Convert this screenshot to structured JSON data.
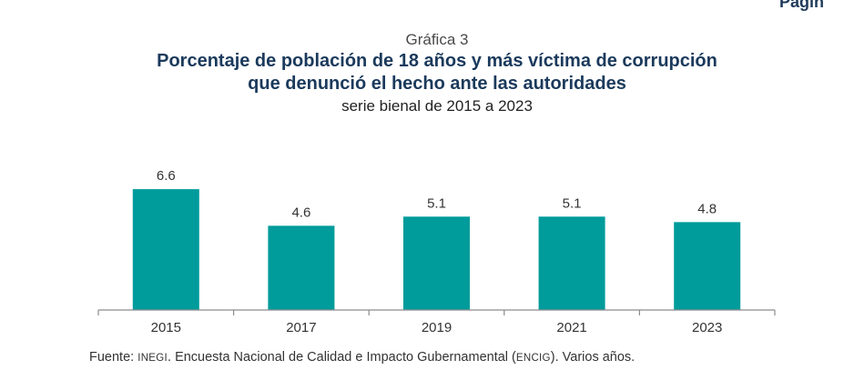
{
  "page": {
    "corner_text": "Pagin",
    "label": "Gráfica 3",
    "title_line1": "Porcentaje de población de 18 años y más víctima de corrupción",
    "title_line2": "que denunció el hecho ante las autoridades",
    "subtitle": "serie bienal de 2015 a 2023"
  },
  "footer": {
    "prefix": "Fuente: ",
    "org": "INEGI",
    "middle": ". Encuesta Nacional de Calidad e Impacto Gubernamental (",
    "abbr": "ENCIG",
    "suffix": "). Varios años."
  },
  "chart_data": {
    "type": "bar",
    "categories": [
      "2015",
      "2017",
      "2019",
      "2021",
      "2023"
    ],
    "values": [
      6.6,
      4.6,
      5.1,
      5.1,
      4.8
    ],
    "ylim": [
      0,
      7.2
    ],
    "bar_color": "#009b9b",
    "axis_color": "#8c8c8c",
    "grid": false,
    "legend": "none"
  }
}
